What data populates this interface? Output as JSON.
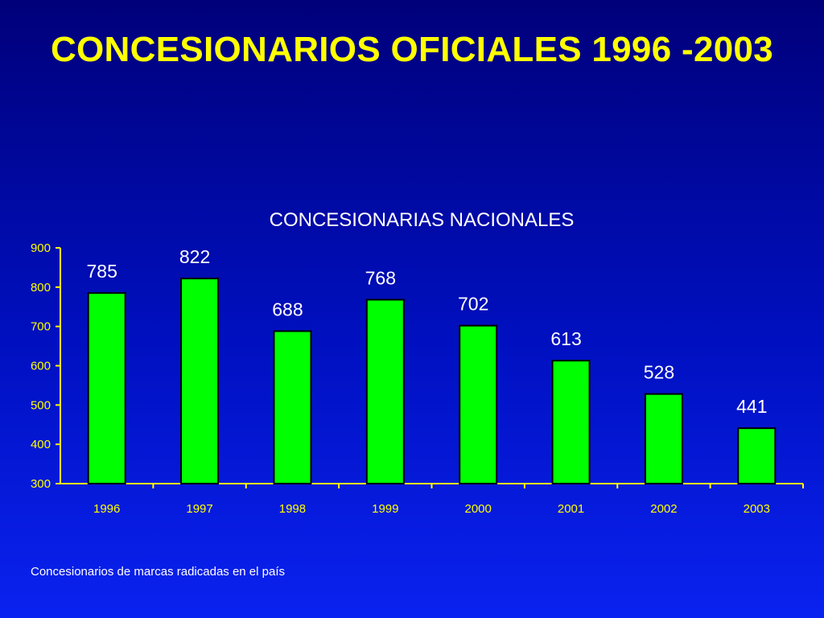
{
  "slide": {
    "title": "CONCESIONARIOS OFICIALES 1996 -2003",
    "footnote": "Concesionarios de marcas radicadas en el país"
  },
  "colors": {
    "title": "#ffff00",
    "bar_fill": "#00ff00",
    "bar_stroke": "#000000",
    "axis": "#ffff00",
    "text": "#ffffff"
  },
  "chart_data": {
    "type": "bar",
    "title": "CONCESIONARIAS NACIONALES",
    "categories": [
      "1996",
      "1997",
      "1998",
      "1999",
      "2000",
      "2001",
      "2002",
      "2003"
    ],
    "values": [
      785,
      822,
      688,
      768,
      702,
      613,
      528,
      441
    ],
    "data_labels": [
      "785",
      "822",
      "688",
      "768",
      "702",
      "613",
      "528",
      "441"
    ],
    "ylim": [
      300,
      900
    ],
    "yticks": [
      "300",
      "400",
      "500",
      "600",
      "700",
      "800",
      "900"
    ],
    "xlabel": "",
    "ylabel": "",
    "grid": false,
    "legend": "none"
  }
}
